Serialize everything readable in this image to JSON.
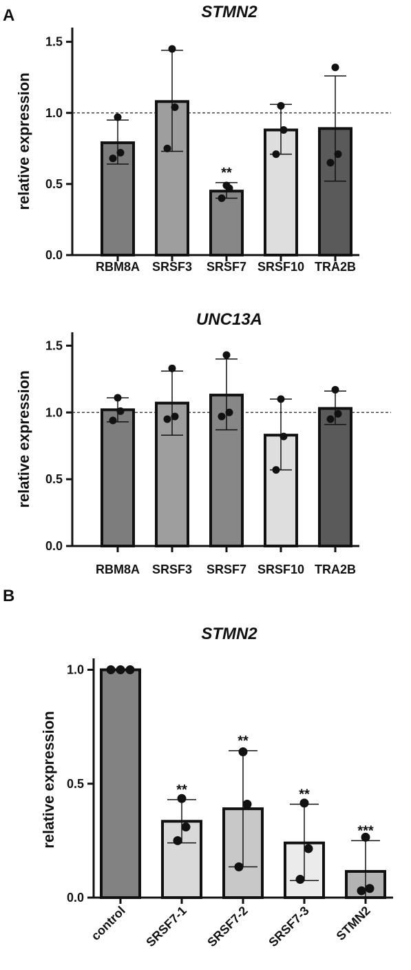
{
  "panels": [
    {
      "letter": "A"
    },
    {
      "letter": ""
    },
    {
      "letter": "B"
    }
  ],
  "chart_data": [
    {
      "type": "bar",
      "title": "STMN2",
      "ylabel": "relative expression",
      "xlabel": "",
      "ylim": [
        0,
        1.6
      ],
      "yticks": [
        "0.0",
        "0.5",
        "1.0",
        "1.5"
      ],
      "reference_line": 1.0,
      "categories": [
        "RBM8A",
        "SRSF3",
        "SRSF7",
        "SRSF10",
        "TRA2B"
      ],
      "values": [
        0.79,
        1.08,
        0.45,
        0.88,
        0.89
      ],
      "error": [
        [
          0.64,
          0.95
        ],
        [
          0.73,
          1.44
        ],
        [
          0.4,
          0.51
        ],
        [
          0.71,
          1.06
        ],
        [
          0.52,
          1.26
        ]
      ],
      "points": [
        [
          0.68,
          0.72,
          0.97
        ],
        [
          0.75,
          1.04,
          1.45
        ],
        [
          0.4,
          0.47,
          0.49
        ],
        [
          0.71,
          0.88,
          1.05
        ],
        [
          0.65,
          0.71,
          1.32
        ]
      ],
      "significance": [
        "",
        "",
        "**",
        "",
        ""
      ],
      "bar_colors": [
        "#7d7d7d",
        "#9e9e9e",
        "#878787",
        "#dedede",
        "#5a5a5a"
      ]
    },
    {
      "type": "bar",
      "title": "UNC13A",
      "ylabel": "relative expression",
      "xlabel": "",
      "ylim": [
        0,
        1.6
      ],
      "yticks": [
        "0.0",
        "0.5",
        "1.0",
        "1.5"
      ],
      "reference_line": 1.0,
      "categories": [
        "RBM8A",
        "SRSF3",
        "SRSF7",
        "SRSF10",
        "TRA2B"
      ],
      "values": [
        1.02,
        1.07,
        1.13,
        0.83,
        1.03
      ],
      "error": [
        [
          0.93,
          1.11
        ],
        [
          0.83,
          1.31
        ],
        [
          0.87,
          1.4
        ],
        [
          0.57,
          1.1
        ],
        [
          0.91,
          1.16
        ]
      ],
      "points": [
        [
          0.94,
          1.01,
          1.11
        ],
        [
          0.95,
          0.97,
          1.33
        ],
        [
          0.97,
          1.0,
          1.43
        ],
        [
          0.57,
          0.82,
          1.1
        ],
        [
          0.95,
          0.99,
          1.17
        ]
      ],
      "significance": [
        "",
        "",
        "",
        "",
        ""
      ],
      "bar_colors": [
        "#7d7d7d",
        "#9e9e9e",
        "#878787",
        "#dedede",
        "#5a5a5a"
      ]
    },
    {
      "type": "bar",
      "title": "STMN2",
      "ylabel": "relative  expression",
      "xlabel": "",
      "ylim": [
        0,
        1.05
      ],
      "yticks": [
        "0.0",
        "0.5",
        "1.0"
      ],
      "categories": [
        "control",
        "SRSF7-1",
        "SRSF7-2",
        "SRSF7-3",
        "STMN2"
      ],
      "values": [
        1.0,
        0.335,
        0.39,
        0.24,
        0.115
      ],
      "error": [
        [
          1.0,
          1.0
        ],
        [
          0.24,
          0.43
        ],
        [
          0.135,
          0.645
        ],
        [
          0.075,
          0.41
        ],
        [
          0.0,
          0.25
        ]
      ],
      "points": [
        [
          1.0,
          1.0,
          1.0
        ],
        [
          0.25,
          0.31,
          0.435
        ],
        [
          0.135,
          0.41,
          0.64
        ],
        [
          0.08,
          0.215,
          0.415
        ],
        [
          0.03,
          0.04,
          0.265
        ]
      ],
      "significance": [
        "",
        "**",
        "**",
        "**",
        "***"
      ],
      "bar_colors": [
        "#828282",
        "#d9d9d9",
        "#c8c8c8",
        "#ebebeb",
        "#b3b3b3"
      ]
    }
  ]
}
